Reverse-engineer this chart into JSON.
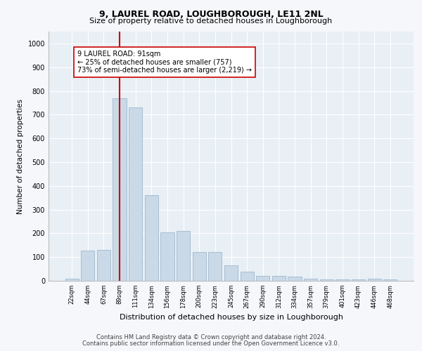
{
  "title1": "9, LAUREL ROAD, LOUGHBOROUGH, LE11 2NL",
  "title2": "Size of property relative to detached houses in Loughborough",
  "xlabel": "Distribution of detached houses by size in Loughborough",
  "ylabel": "Number of detached properties",
  "bar_labels": [
    "22sqm",
    "44sqm",
    "67sqm",
    "89sqm",
    "111sqm",
    "134sqm",
    "156sqm",
    "178sqm",
    "200sqm",
    "223sqm",
    "245sqm",
    "267sqm",
    "290sqm",
    "312sqm",
    "334sqm",
    "357sqm",
    "379sqm",
    "401sqm",
    "423sqm",
    "446sqm",
    "468sqm"
  ],
  "bar_values": [
    10,
    128,
    130,
    770,
    730,
    360,
    205,
    210,
    120,
    120,
    65,
    38,
    20,
    20,
    18,
    10,
    5,
    5,
    5,
    8,
    5
  ],
  "bar_color": "#c9d9e8",
  "bar_edgecolor": "#a0b8cc",
  "vline_x": 3,
  "vline_color": "#cc0000",
  "annotation_text": "9 LAUREL ROAD: 91sqm\n← 25% of detached houses are smaller (757)\n73% of semi-detached houses are larger (2,219) →",
  "annotation_box_color": "#ffffff",
  "annotation_box_edgecolor": "#cc0000",
  "ylim": [
    0,
    1050
  ],
  "yticks": [
    0,
    100,
    200,
    300,
    400,
    500,
    600,
    700,
    800,
    900,
    1000
  ],
  "footer1": "Contains HM Land Registry data © Crown copyright and database right 2024.",
  "footer2": "Contains public sector information licensed under the Open Government Licence v3.0.",
  "fig_bg_color": "#f5f7fa",
  "plot_bg_color": "#e8eff5"
}
